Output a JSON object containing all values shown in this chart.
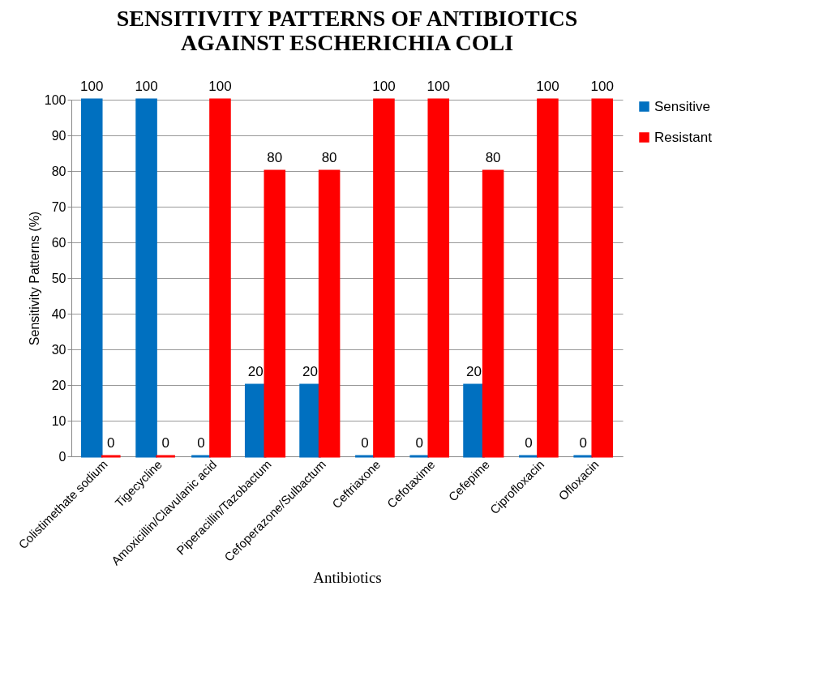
{
  "chart_data": {
    "type": "bar",
    "title": "SENSITIVITY PATTERNS OF ANTIBIOTICS AGAINST ESCHERICHIA COLI",
    "xlabel": "Antibiotics",
    "ylabel": "Sensitivity Patterns (%)",
    "categories": [
      "Colistimethate sodium",
      "Tigecycline",
      "Amoxicillin/Clavulanic acid",
      "Piperacillin/Tazobactum",
      "Cefoperazone/Sulbactum",
      "Ceftriaxone",
      "Cefotaxime",
      "Cefepime",
      "Ciprofloxacin",
      "Ofloxacin"
    ],
    "series": [
      {
        "name": "Sensitive",
        "color": "#0070c0",
        "values": [
          100,
          100,
          0,
          20,
          20,
          0,
          0,
          20,
          0,
          0
        ]
      },
      {
        "name": "Resistant",
        "color": "#ff0000",
        "values": [
          0,
          0,
          100,
          80,
          80,
          100,
          100,
          80,
          100,
          100
        ]
      }
    ],
    "ylim": [
      0,
      100
    ],
    "yticks": [
      0,
      10,
      20,
      30,
      40,
      50,
      60,
      70,
      80,
      90,
      100
    ],
    "grid": "y",
    "legend": "right",
    "data_labels": true
  }
}
